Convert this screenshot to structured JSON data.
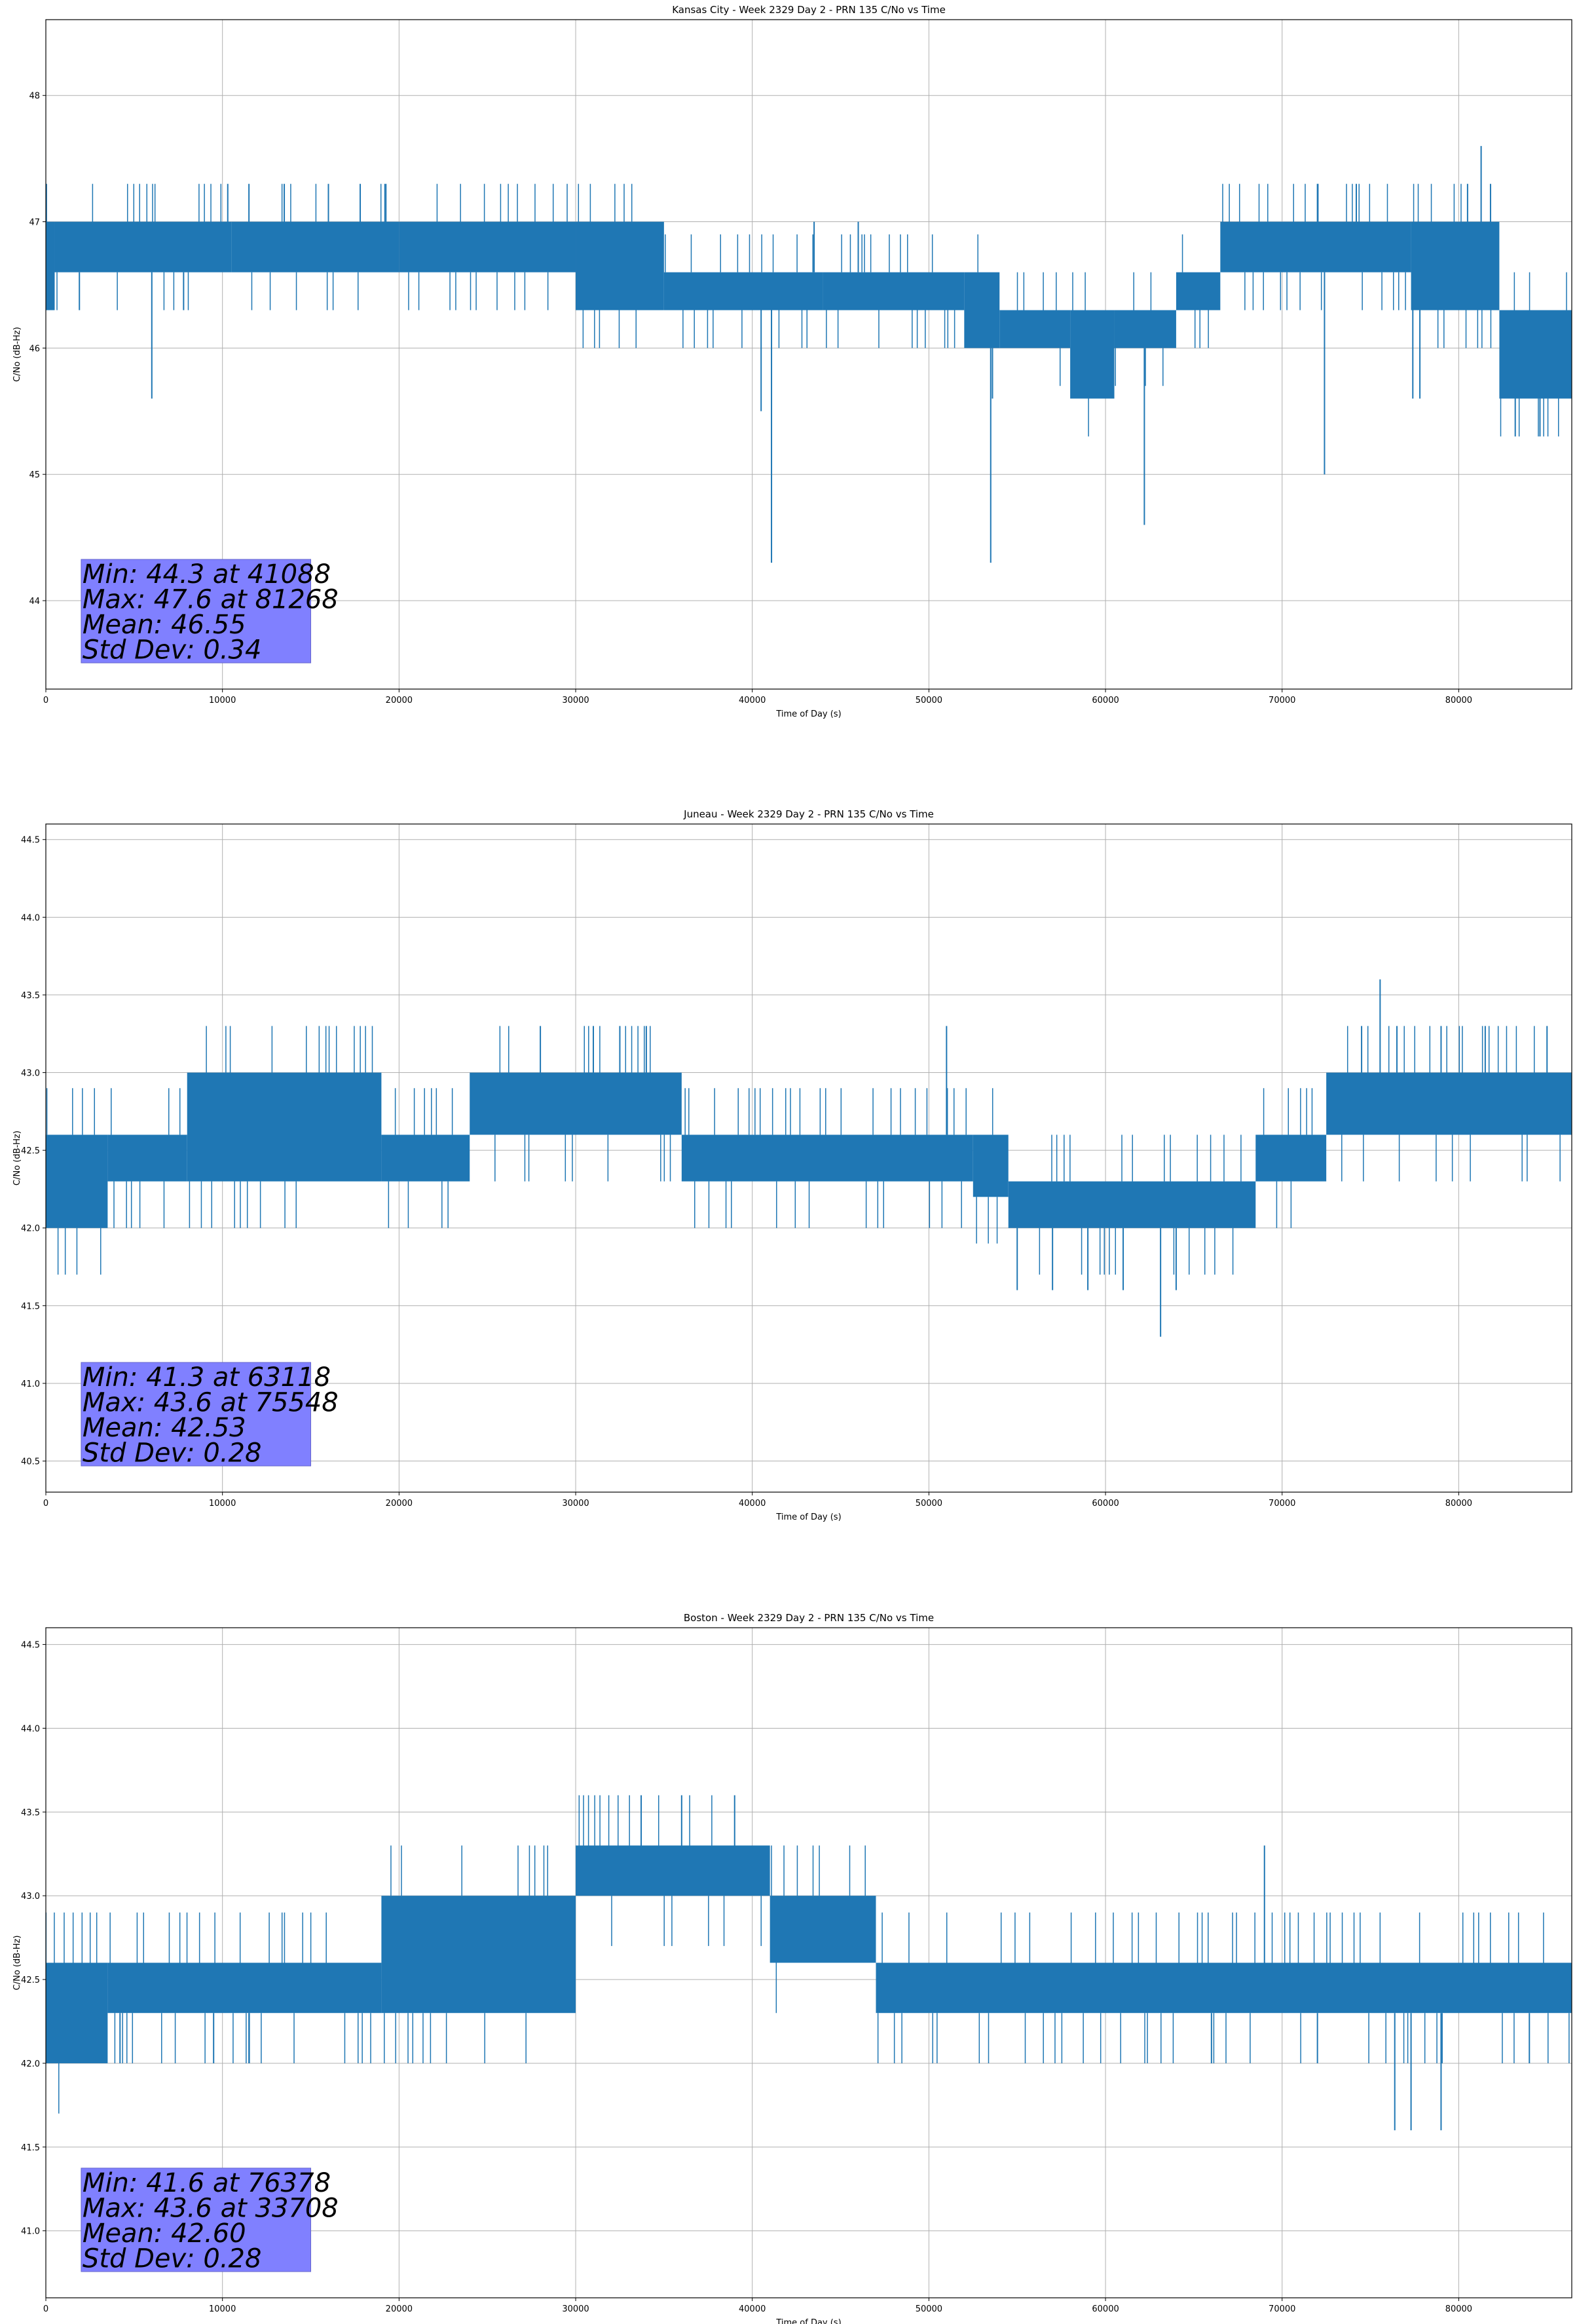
{
  "figure": {
    "background": "#ffffff"
  },
  "chart_data": [
    {
      "type": "line",
      "title": "Kansas City - Week 2329 Day 2 - PRN 135 C/No vs Time",
      "xlabel": "Time of Day (s)",
      "ylabel": "C/No (dB-Hz)",
      "xlim": [
        0,
        86400
      ],
      "ylim": [
        43.3,
        48.6
      ],
      "xticks": [
        0,
        10000,
        20000,
        30000,
        40000,
        50000,
        60000,
        70000,
        80000
      ],
      "yticks": [
        44,
        45,
        46,
        47,
        48
      ],
      "ytick_decimals": 0,
      "grid": true,
      "line_color": "#1f77b4",
      "band_segments": [
        {
          "x": [
            0,
            500
          ],
          "low": 46.3,
          "high": 47.0
        },
        {
          "x": [
            500,
            10500
          ],
          "low": 46.6,
          "high": 47.0
        },
        {
          "x": [
            10500,
            20000
          ],
          "low": 46.6,
          "high": 47.0
        },
        {
          "x": [
            20000,
            30000
          ],
          "low": 46.6,
          "high": 47.0
        },
        {
          "x": [
            30000,
            35000
          ],
          "low": 46.3,
          "high": 47.0
        },
        {
          "x": [
            35000,
            44000
          ],
          "low": 46.3,
          "high": 46.6
        },
        {
          "x": [
            44000,
            52000
          ],
          "low": 46.3,
          "high": 46.6
        },
        {
          "x": [
            52000,
            54000
          ],
          "low": 46.0,
          "high": 46.6
        },
        {
          "x": [
            54000,
            58000
          ],
          "low": 46.0,
          "high": 46.3
        },
        {
          "x": [
            58000,
            60500
          ],
          "low": 45.6,
          "high": 46.3
        },
        {
          "x": [
            60500,
            64000
          ],
          "low": 46.0,
          "high": 46.3
        },
        {
          "x": [
            64000,
            66500
          ],
          "low": 46.3,
          "high": 46.6
        },
        {
          "x": [
            66500,
            77300
          ],
          "low": 46.6,
          "high": 47.0
        },
        {
          "x": [
            77300,
            82300
          ],
          "low": 46.3,
          "high": 47.0
        },
        {
          "x": [
            82300,
            86400
          ],
          "low": 45.6,
          "high": 46.3
        }
      ],
      "spikes": [
        {
          "x": 6000,
          "y": 45.6
        },
        {
          "x": 7800,
          "y": 46.3
        },
        {
          "x": 1900,
          "y": 46.3
        },
        {
          "x": 10300,
          "y": 47.3
        },
        {
          "x": 11500,
          "y": 47.3
        },
        {
          "x": 13500,
          "y": 47.3
        },
        {
          "x": 16000,
          "y": 47.3
        },
        {
          "x": 17800,
          "y": 47.3
        },
        {
          "x": 19200,
          "y": 47.3
        },
        {
          "x": 41088,
          "y": 44.3
        },
        {
          "x": 40500,
          "y": 45.5
        },
        {
          "x": 43500,
          "y": 47.0
        },
        {
          "x": 46000,
          "y": 47.0
        },
        {
          "x": 53500,
          "y": 44.3
        },
        {
          "x": 53600,
          "y": 45.6
        },
        {
          "x": 62200,
          "y": 44.6
        },
        {
          "x": 72400,
          "y": 45.0
        },
        {
          "x": 72000,
          "y": 47.3
        },
        {
          "x": 74200,
          "y": 47.3
        },
        {
          "x": 77400,
          "y": 45.6
        },
        {
          "x": 77800,
          "y": 45.6
        },
        {
          "x": 80500,
          "y": 47.3
        },
        {
          "x": 81268,
          "y": 47.6
        },
        {
          "x": 81800,
          "y": 47.3
        },
        {
          "x": 83200,
          "y": 45.3
        },
        {
          "x": 84600,
          "y": 45.3
        }
      ],
      "stats_box": {
        "min_label": "Min: 44.3 at 41088",
        "max_label": "Max: 47.6 at 81268",
        "mean_label": "Mean: 46.55",
        "std_label": "Std Dev: 0.34",
        "color": "#8080ff"
      }
    },
    {
      "type": "line",
      "title": "Juneau - Week 2329 Day 2 - PRN 135 C/No vs Time",
      "xlabel": "Time of Day (s)",
      "ylabel": "C/No (dB-Hz)",
      "xlim": [
        0,
        86400
      ],
      "ylim": [
        40.3,
        44.6
      ],
      "xticks": [
        0,
        10000,
        20000,
        30000,
        40000,
        50000,
        60000,
        70000,
        80000
      ],
      "yticks": [
        40.5,
        41.0,
        41.5,
        42.0,
        42.5,
        43.0,
        43.5,
        44.0,
        44.5
      ],
      "ytick_decimals": 1,
      "grid": true,
      "line_color": "#1f77b4",
      "band_segments": [
        {
          "x": [
            0,
            3500
          ],
          "low": 42.0,
          "high": 42.6
        },
        {
          "x": [
            3500,
            8000
          ],
          "low": 42.3,
          "high": 42.6
        },
        {
          "x": [
            8000,
            19000
          ],
          "low": 42.3,
          "high": 43.0
        },
        {
          "x": [
            19000,
            24000
          ],
          "low": 42.3,
          "high": 42.6
        },
        {
          "x": [
            24000,
            36000
          ],
          "low": 42.6,
          "high": 43.0
        },
        {
          "x": [
            36000,
            52500
          ],
          "low": 42.3,
          "high": 42.6
        },
        {
          "x": [
            52500,
            54500
          ],
          "low": 42.2,
          "high": 42.6
        },
        {
          "x": [
            54500,
            68500
          ],
          "low": 42.0,
          "high": 42.3
        },
        {
          "x": [
            68500,
            72500
          ],
          "low": 42.3,
          "high": 42.6
        },
        {
          "x": [
            72500,
            86400
          ],
          "low": 42.6,
          "high": 43.0
        }
      ],
      "spikes": [
        {
          "x": 28000,
          "y": 43.3
        },
        {
          "x": 31000,
          "y": 43.3
        },
        {
          "x": 32500,
          "y": 43.3
        },
        {
          "x": 34000,
          "y": 43.3
        },
        {
          "x": 51000,
          "y": 43.3
        },
        {
          "x": 55000,
          "y": 41.6
        },
        {
          "x": 57000,
          "y": 41.6
        },
        {
          "x": 59000,
          "y": 41.6
        },
        {
          "x": 61000,
          "y": 41.6
        },
        {
          "x": 63118,
          "y": 41.3
        },
        {
          "x": 64000,
          "y": 41.6
        },
        {
          "x": 74500,
          "y": 43.3
        },
        {
          "x": 75548,
          "y": 43.6
        },
        {
          "x": 76500,
          "y": 43.3
        },
        {
          "x": 79000,
          "y": 43.3
        },
        {
          "x": 81500,
          "y": 43.3
        },
        {
          "x": 85000,
          "y": 43.3
        }
      ],
      "stats_box": {
        "min_label": "Min: 41.3 at 63118",
        "max_label": "Max: 43.6 at 75548",
        "mean_label": "Mean: 42.53",
        "std_label": "Std Dev: 0.28",
        "color": "#8080ff"
      }
    },
    {
      "type": "line",
      "title": "Boston - Week 2329 Day 2 - PRN 135 C/No vs Time",
      "xlabel": "Time of Day (s)",
      "ylabel": "C/No (dB-Hz)",
      "xlim": [
        0,
        86400
      ],
      "ylim": [
        40.6,
        44.6
      ],
      "xticks": [
        0,
        10000,
        20000,
        30000,
        40000,
        50000,
        60000,
        70000,
        80000
      ],
      "yticks": [
        41.0,
        41.5,
        42.0,
        42.5,
        43.0,
        43.5,
        44.0,
        44.5
      ],
      "ytick_decimals": 1,
      "grid": true,
      "line_color": "#1f77b4",
      "band_segments": [
        {
          "x": [
            0,
            3500
          ],
          "low": 42.0,
          "high": 42.6
        },
        {
          "x": [
            3500,
            19000
          ],
          "low": 42.3,
          "high": 42.6
        },
        {
          "x": [
            19000,
            30000
          ],
          "low": 42.3,
          "high": 43.0
        },
        {
          "x": [
            30000,
            41000
          ],
          "low": 43.0,
          "high": 43.3
        },
        {
          "x": [
            41000,
            47000
          ],
          "low": 42.6,
          "high": 43.0
        },
        {
          "x": [
            47000,
            86400
          ],
          "low": 42.3,
          "high": 42.6
        }
      ],
      "spikes": [
        {
          "x": 4200,
          "y": 42.0
        },
        {
          "x": 9500,
          "y": 42.0
        },
        {
          "x": 11500,
          "y": 42.0
        },
        {
          "x": 33708,
          "y": 43.6
        },
        {
          "x": 36000,
          "y": 43.6
        },
        {
          "x": 39000,
          "y": 43.6
        },
        {
          "x": 69000,
          "y": 43.3
        },
        {
          "x": 76378,
          "y": 41.6
        },
        {
          "x": 77300,
          "y": 41.6
        },
        {
          "x": 79000,
          "y": 41.6
        },
        {
          "x": 66000,
          "y": 42.0
        },
        {
          "x": 72000,
          "y": 42.0
        },
        {
          "x": 84000,
          "y": 42.0
        }
      ],
      "stats_box": {
        "min_label": "Min: 41.6 at 76378",
        "max_label": "Max: 43.6 at 33708",
        "mean_label": "Mean: 42.60",
        "std_label": "Std Dev: 0.28",
        "color": "#8080ff"
      }
    }
  ]
}
